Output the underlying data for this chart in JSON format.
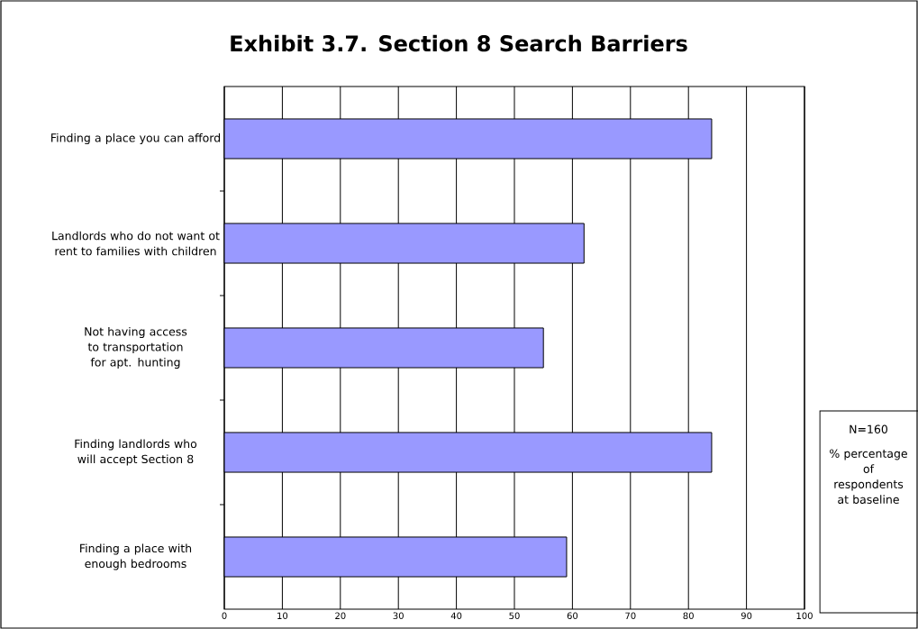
{
  "chart_data": {
    "type": "bar",
    "orientation": "horizontal",
    "title": "Exhibit 3.7.  Section 8 Search Barriers",
    "categories": [
      "Finding a place you can afford",
      "Landlords who do not want ot rent to families with children",
      "Not having access to transportation for apt. hunting",
      "Finding landlords who will accept Section 8",
      "Finding a place with enough bedrooms"
    ],
    "values": [
      84,
      62,
      55,
      84,
      59
    ],
    "color": "#9999ff",
    "xlim": [
      0,
      100
    ],
    "xticks": [
      0,
      10,
      20,
      30,
      40,
      50,
      60,
      70,
      80,
      90,
      100
    ],
    "grid": "x",
    "annotations": [
      "N=160",
      "% percentage of respondents at baseline"
    ]
  }
}
